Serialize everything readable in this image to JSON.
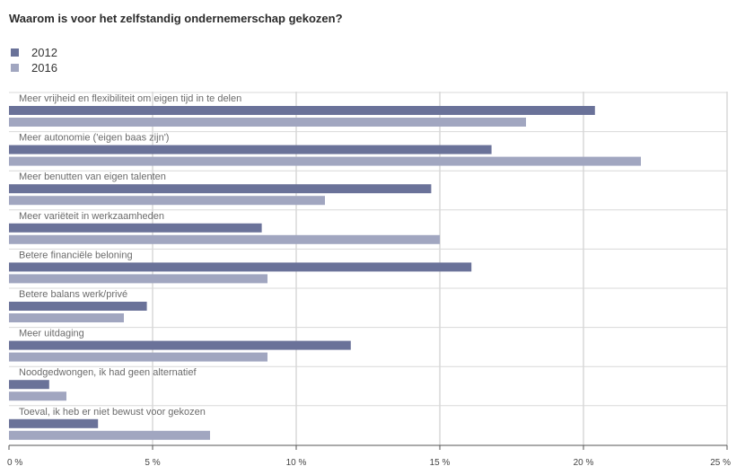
{
  "chart_data": {
    "type": "bar",
    "orientation": "horizontal",
    "title": "Waarom is voor het zelfstandig ondernemerschap gekozen?",
    "categories": [
      "Meer vrijheid en flexibiliteit om eigen tijd in te delen",
      "Meer autonomie ('eigen baas zijn')",
      "Meer benutten van eigen talenten",
      "Meer variëteit in werkzaamheden",
      "Betere financiële beloning",
      "Betere balans werk/privé",
      "Meer uitdaging",
      "Noodgedwongen, ik had geen alternatief",
      "Toeval, ik heb er niet bewust voor gekozen"
    ],
    "series": [
      {
        "name": "2012",
        "color": "#6a7299",
        "values": [
          20.4,
          16.8,
          14.7,
          8.8,
          16.1,
          4.8,
          11.9,
          1.4,
          3.1
        ]
      },
      {
        "name": "2016",
        "color": "#a1a6c0",
        "values": [
          18.0,
          22.0,
          11.0,
          15.0,
          9.0,
          4.0,
          9.0,
          2.0,
          7.0
        ]
      }
    ],
    "xlim": [
      0,
      25
    ],
    "xticks": [
      0,
      5,
      10,
      15,
      20,
      25
    ],
    "tick_labels": [
      "0 %",
      "5 %",
      "10 %",
      "15 %",
      "20 %",
      "25 %"
    ],
    "grid": true,
    "legend_position": "top-left"
  }
}
